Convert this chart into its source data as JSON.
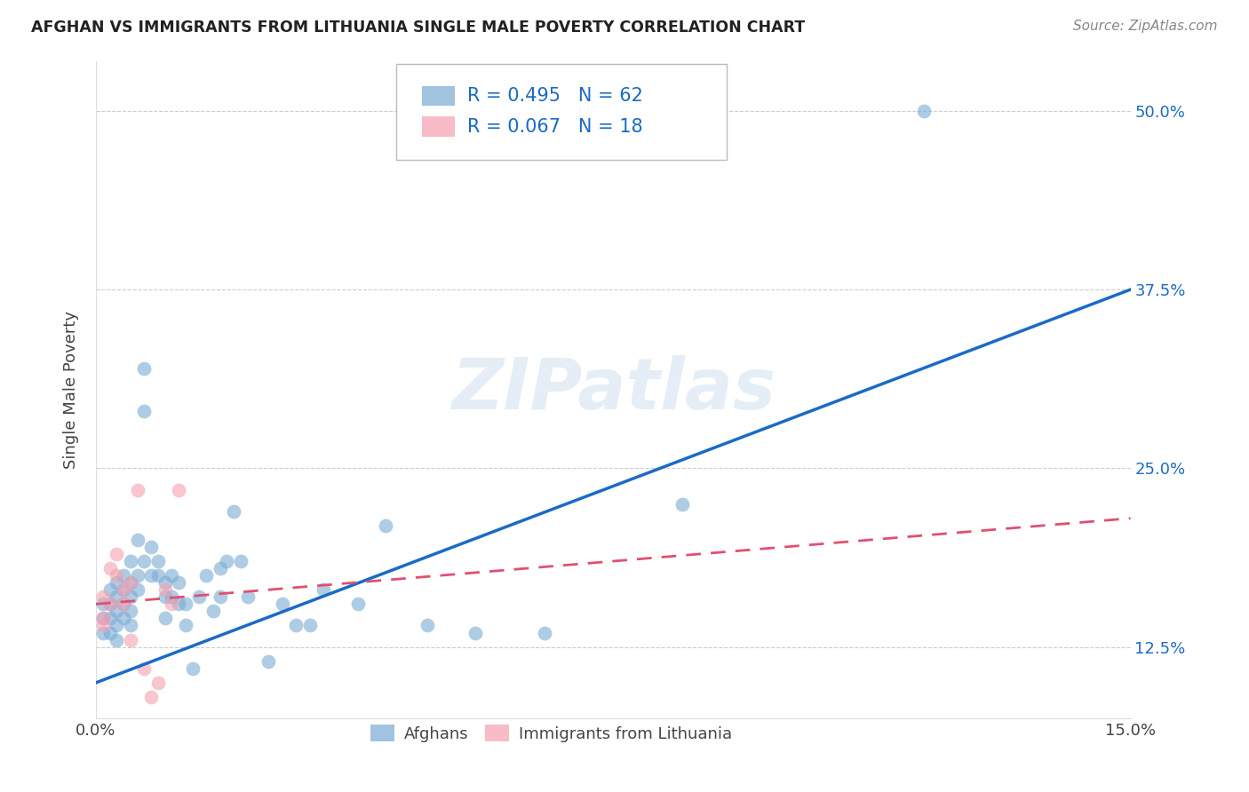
{
  "title": "AFGHAN VS IMMIGRANTS FROM LITHUANIA SINGLE MALE POVERTY CORRELATION CHART",
  "source": "Source: ZipAtlas.com",
  "ylabel": "Single Male Poverty",
  "ytick_labels": [
    "12.5%",
    "25.0%",
    "37.5%",
    "50.0%"
  ],
  "ytick_values": [
    0.125,
    0.25,
    0.375,
    0.5
  ],
  "xmin": 0.0,
  "xmax": 0.15,
  "ymin": 0.075,
  "ymax": 0.535,
  "watermark": "ZIPatlas",
  "afghans_color": "#7aaad4",
  "lithuania_color": "#f4a0b0",
  "afghans_line_color": "#1a6bc4",
  "lithuania_line_color": "#e05070",
  "afghans_R": 0.495,
  "afghans_N": 62,
  "lithuania_R": 0.067,
  "lithuania_N": 18,
  "blue_line_x0": 0.0,
  "blue_line_y0": 0.1,
  "blue_line_x1": 0.15,
  "blue_line_y1": 0.375,
  "pink_line_x0": 0.0,
  "pink_line_y0": 0.155,
  "pink_line_x1": 0.15,
  "pink_line_y1": 0.215,
  "afghans_x": [
    0.001,
    0.001,
    0.001,
    0.002,
    0.002,
    0.002,
    0.002,
    0.003,
    0.003,
    0.003,
    0.003,
    0.003,
    0.004,
    0.004,
    0.004,
    0.004,
    0.005,
    0.005,
    0.005,
    0.005,
    0.005,
    0.006,
    0.006,
    0.006,
    0.007,
    0.007,
    0.007,
    0.008,
    0.008,
    0.009,
    0.009,
    0.01,
    0.01,
    0.01,
    0.011,
    0.011,
    0.012,
    0.012,
    0.013,
    0.013,
    0.014,
    0.015,
    0.016,
    0.017,
    0.018,
    0.018,
    0.019,
    0.02,
    0.021,
    0.022,
    0.025,
    0.027,
    0.029,
    0.031,
    0.033,
    0.038,
    0.042,
    0.048,
    0.055,
    0.065,
    0.085,
    0.12
  ],
  "afghans_y": [
    0.155,
    0.145,
    0.135,
    0.165,
    0.155,
    0.145,
    0.135,
    0.17,
    0.16,
    0.15,
    0.14,
    0.13,
    0.175,
    0.165,
    0.155,
    0.145,
    0.185,
    0.17,
    0.16,
    0.15,
    0.14,
    0.2,
    0.175,
    0.165,
    0.29,
    0.32,
    0.185,
    0.195,
    0.175,
    0.185,
    0.175,
    0.17,
    0.16,
    0.145,
    0.175,
    0.16,
    0.17,
    0.155,
    0.155,
    0.14,
    0.11,
    0.16,
    0.175,
    0.15,
    0.18,
    0.16,
    0.185,
    0.22,
    0.185,
    0.16,
    0.115,
    0.155,
    0.14,
    0.14,
    0.165,
    0.155,
    0.21,
    0.14,
    0.135,
    0.135,
    0.225,
    0.5
  ],
  "lithuania_x": [
    0.001,
    0.001,
    0.001,
    0.002,
    0.002,
    0.003,
    0.003,
    0.004,
    0.004,
    0.005,
    0.005,
    0.006,
    0.007,
    0.008,
    0.009,
    0.01,
    0.011,
    0.012
  ],
  "lithuania_y": [
    0.16,
    0.145,
    0.14,
    0.18,
    0.155,
    0.19,
    0.175,
    0.165,
    0.155,
    0.17,
    0.13,
    0.235,
    0.11,
    0.09,
    0.1,
    0.165,
    0.155,
    0.235
  ]
}
